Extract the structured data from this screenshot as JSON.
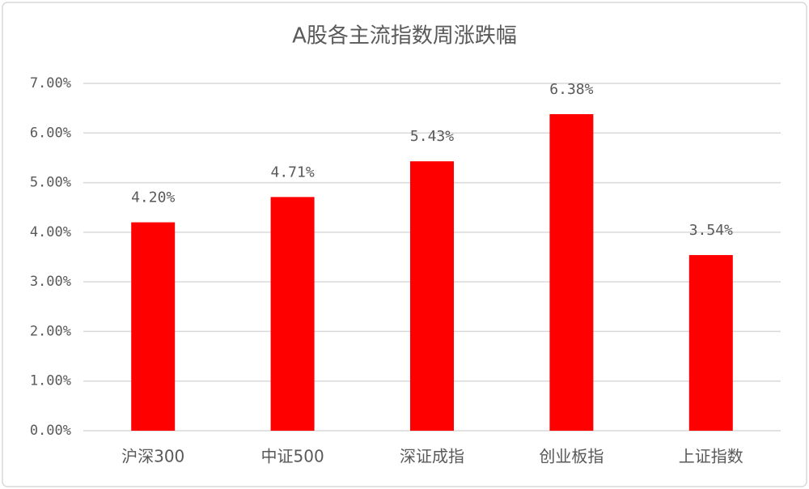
{
  "chart_data": {
    "type": "bar",
    "title": "A股各主流指数周涨跌幅",
    "categories": [
      "沪深300",
      "中证500",
      "深证成指",
      "创业板指",
      "上证指数"
    ],
    "values": [
      4.2,
      4.71,
      5.43,
      6.38,
      3.54
    ],
    "value_labels": [
      "4.20%",
      "4.71%",
      "5.43%",
      "6.38%",
      "3.54%"
    ],
    "color": "#ff0000",
    "ylim": [
      0,
      7
    ],
    "yticks": [
      {
        "value": 0,
        "label": "0.00%"
      },
      {
        "value": 1,
        "label": "1.00%"
      },
      {
        "value": 2,
        "label": "2.00%"
      },
      {
        "value": 3,
        "label": "3.00%"
      },
      {
        "value": 4,
        "label": "4.00%"
      },
      {
        "value": 5,
        "label": "5.00%"
      },
      {
        "value": 6,
        "label": "6.00%"
      },
      {
        "value": 7,
        "label": "7.00%"
      }
    ],
    "grid": true
  }
}
